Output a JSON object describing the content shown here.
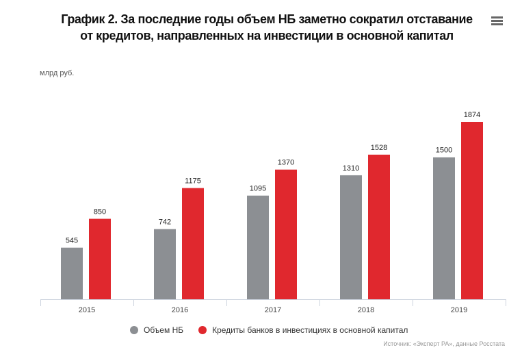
{
  "title_lines": [
    "График 2. За последние годы объем НБ заметно сократил отставание",
    "от кредитов, направленных на инвестиции в основной капитал"
  ],
  "menu_icon": "hamburger-menu-icon",
  "source": "Источник: «Эксперт РА», данные Росстата",
  "chart_data": {
    "type": "bar",
    "title": "График 2. За последние годы объем НБ заметно сократил отставание от кредитов, направленных на инвестиции в основной капитал",
    "ylabel": "млрд руб.",
    "xlabel": "",
    "categories": [
      "2015",
      "2016",
      "2017",
      "2018",
      "2019"
    ],
    "series": [
      {
        "name": "Объем НБ",
        "color": "#8c8f93",
        "values": [
          545,
          742,
          1095,
          1310,
          1500
        ]
      },
      {
        "name": "Кредиты банков в инвестициях в основной капитал",
        "color": "#e0282e",
        "values": [
          850,
          1175,
          1370,
          1528,
          1874
        ]
      }
    ],
    "ylim": [
      0,
      2000
    ],
    "grid": false,
    "legend_position": "bottom"
  }
}
